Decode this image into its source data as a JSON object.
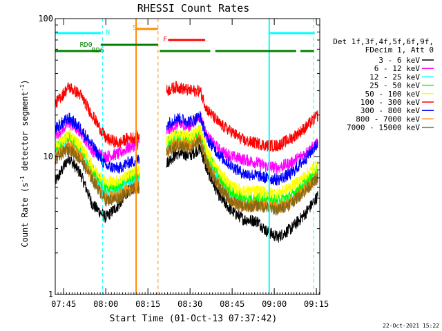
{
  "chart_data": {
    "type": "line",
    "title": "RHESSI Count Rates",
    "xlabel": "Start Time (01-Oct-13 07:37:42)",
    "ylabel": "Count Rate (s⁻¹ detector segment⁻¹)",
    "ylabel_parts": {
      "a": "Count Rate (s",
      "b": "-1",
      "c": " detector segment",
      "d": "-1",
      "e": ")"
    },
    "yscale": "log",
    "ylim": [
      1,
      100
    ],
    "xlim_minutes": [
      7.7,
      9.27
    ],
    "x_ticks": [
      {
        "label": "07:45",
        "value": 7.75
      },
      {
        "label": "08:00",
        "value": 8.0
      },
      {
        "label": "08:15",
        "value": 8.25
      },
      {
        "label": "08:30",
        "value": 8.5
      },
      {
        "label": "08:45",
        "value": 8.75
      },
      {
        "label": "09:00",
        "value": 9.0
      },
      {
        "label": "09:15",
        "value": 9.25
      }
    ],
    "y_ticks": [
      {
        "label": "1",
        "value": 1
      },
      {
        "label": "10",
        "value": 10
      },
      {
        "label": "100",
        "value": 100
      }
    ],
    "legend_header": [
      "Det 1f,3f,4f,5f,6f,9f,",
      "FDecim 1, Att 0"
    ],
    "legend_placement": "right",
    "series": [
      {
        "name": "3 - 6 keV",
        "color": "#000000",
        "points": [
          [
            7.7,
            6.5
          ],
          [
            7.78,
            9.8
          ],
          [
            7.85,
            7.5
          ],
          [
            7.92,
            4.5
          ],
          [
            8.0,
            3.6
          ],
          [
            8.08,
            4.5
          ],
          [
            8.13,
            5.6
          ],
          [
            8.2,
            6.3
          ],
          [
            8.26,
            null
          ],
          [
            8.35,
            null
          ],
          [
            8.36,
            9.0
          ],
          [
            8.42,
            10.5
          ],
          [
            8.5,
            10.2
          ],
          [
            8.56,
            11.5
          ],
          [
            8.6,
            8.0
          ],
          [
            8.68,
            5.0
          ],
          [
            8.75,
            4.0
          ],
          [
            8.82,
            3.5
          ],
          [
            8.9,
            3.4
          ],
          [
            8.95,
            2.9
          ],
          [
            9.02,
            2.6
          ],
          [
            9.1,
            3.0
          ],
          [
            9.18,
            3.8
          ],
          [
            9.26,
            5.2
          ]
        ]
      },
      {
        "name": "6 - 12 keV",
        "color": "#ff00ff",
        "points": [
          [
            7.7,
            14
          ],
          [
            7.78,
            17.5
          ],
          [
            7.85,
            15
          ],
          [
            7.92,
            11
          ],
          [
            8.0,
            10.0
          ],
          [
            8.08,
            10.5
          ],
          [
            8.13,
            11.5
          ],
          [
            8.2,
            12.5
          ],
          [
            8.26,
            null
          ],
          [
            8.35,
            null
          ],
          [
            8.36,
            15
          ],
          [
            8.42,
            17
          ],
          [
            8.5,
            16.5
          ],
          [
            8.56,
            20
          ],
          [
            8.6,
            14
          ],
          [
            8.68,
            11
          ],
          [
            8.75,
            10
          ],
          [
            8.82,
            9.5
          ],
          [
            8.9,
            9.0
          ],
          [
            8.95,
            8.5
          ],
          [
            9.02,
            8.3
          ],
          [
            9.1,
            9.0
          ],
          [
            9.18,
            10.5
          ],
          [
            9.26,
            12.5
          ]
        ]
      },
      {
        "name": "12 - 25 keV",
        "color": "#00ffff",
        "points": [
          [
            7.7,
            11
          ],
          [
            7.78,
            13.5
          ],
          [
            7.85,
            11
          ],
          [
            7.92,
            7.5
          ],
          [
            8.0,
            5.5
          ],
          [
            8.08,
            5.8
          ],
          [
            8.13,
            6.5
          ],
          [
            8.2,
            7.0
          ],
          [
            8.26,
            null
          ],
          [
            8.35,
            null
          ],
          [
            8.36,
            12
          ],
          [
            8.42,
            13.5
          ],
          [
            8.5,
            13
          ],
          [
            8.56,
            15
          ],
          [
            8.6,
            10
          ],
          [
            8.68,
            6.5
          ],
          [
            8.75,
            5.0
          ],
          [
            8.82,
            4.5
          ],
          [
            8.9,
            4.6
          ],
          [
            8.95,
            4.5
          ],
          [
            9.02,
            4.2
          ],
          [
            9.1,
            4.8
          ],
          [
            9.18,
            6.0
          ],
          [
            9.26,
            7.5
          ]
        ]
      },
      {
        "name": "25 - 50 keV",
        "color": "#00ff00",
        "points": [
          [
            7.7,
            11.5
          ],
          [
            7.78,
            14
          ],
          [
            7.85,
            11.5
          ],
          [
            7.92,
            8.0
          ],
          [
            8.0,
            6.0
          ],
          [
            8.08,
            6.2
          ],
          [
            8.13,
            7.0
          ],
          [
            8.2,
            7.5
          ],
          [
            8.26,
            null
          ],
          [
            8.35,
            null
          ],
          [
            8.36,
            12.5
          ],
          [
            8.42,
            14
          ],
          [
            8.5,
            13.5
          ],
          [
            8.56,
            15.5
          ],
          [
            8.6,
            10.5
          ],
          [
            8.68,
            7.0
          ],
          [
            8.75,
            5.5
          ],
          [
            8.82,
            5.0
          ],
          [
            8.9,
            5.0
          ],
          [
            8.95,
            5.0
          ],
          [
            9.02,
            4.8
          ],
          [
            9.1,
            5.2
          ],
          [
            9.18,
            6.5
          ],
          [
            9.26,
            8.0
          ]
        ]
      },
      {
        "name": "50 - 100 keV",
        "color": "#ffff00",
        "points": [
          [
            7.7,
            12
          ],
          [
            7.78,
            14.5
          ],
          [
            7.85,
            12
          ],
          [
            7.92,
            8.5
          ],
          [
            8.0,
            6.5
          ],
          [
            8.08,
            6.7
          ],
          [
            8.13,
            7.4
          ],
          [
            8.2,
            8.0
          ],
          [
            8.26,
            null
          ],
          [
            8.35,
            null
          ],
          [
            8.36,
            13
          ],
          [
            8.42,
            14.5
          ],
          [
            8.5,
            14
          ],
          [
            8.56,
            16
          ],
          [
            8.6,
            11
          ],
          [
            8.68,
            7.5
          ],
          [
            8.75,
            6.0
          ],
          [
            8.82,
            5.6
          ],
          [
            8.9,
            5.6
          ],
          [
            8.95,
            5.5
          ],
          [
            9.02,
            5.4
          ],
          [
            9.1,
            6.0
          ],
          [
            9.18,
            7.2
          ],
          [
            9.26,
            8.8
          ]
        ]
      },
      {
        "name": "100 - 300 keV",
        "color": "#ff0000",
        "points": [
          [
            7.7,
            24
          ],
          [
            7.78,
            32
          ],
          [
            7.85,
            28
          ],
          [
            7.92,
            20
          ],
          [
            8.0,
            13.5
          ],
          [
            8.08,
            12.5
          ],
          [
            8.13,
            13.5
          ],
          [
            8.2,
            14.0
          ],
          [
            8.26,
            null
          ],
          [
            8.35,
            null
          ],
          [
            8.36,
            30
          ],
          [
            8.42,
            32
          ],
          [
            8.5,
            30
          ],
          [
            8.56,
            30
          ],
          [
            8.6,
            22
          ],
          [
            8.68,
            17
          ],
          [
            8.75,
            15
          ],
          [
            8.82,
            13
          ],
          [
            8.9,
            12.5
          ],
          [
            8.95,
            12
          ],
          [
            9.02,
            12
          ],
          [
            9.1,
            13.5
          ],
          [
            9.18,
            16
          ],
          [
            9.26,
            20
          ]
        ]
      },
      {
        "name": "300 - 800 keV",
        "color": "#0000ff",
        "points": [
          [
            7.7,
            16
          ],
          [
            7.78,
            19
          ],
          [
            7.85,
            16
          ],
          [
            7.92,
            12
          ],
          [
            8.0,
            8.5
          ],
          [
            8.08,
            8.2
          ],
          [
            8.13,
            9.0
          ],
          [
            8.2,
            9.5
          ],
          [
            8.26,
            null
          ],
          [
            8.35,
            null
          ],
          [
            8.36,
            17
          ],
          [
            8.42,
            19
          ],
          [
            8.5,
            18
          ],
          [
            8.56,
            19.5
          ],
          [
            8.6,
            13.5
          ],
          [
            8.68,
            10
          ],
          [
            8.75,
            8.5
          ],
          [
            8.82,
            7.5
          ],
          [
            8.9,
            7.3
          ],
          [
            8.95,
            7.0
          ],
          [
            9.02,
            6.8
          ],
          [
            9.1,
            7.5
          ],
          [
            9.18,
            9.5
          ],
          [
            9.26,
            12.5
          ]
        ]
      },
      {
        "name": "800 - 7000 keV",
        "color": "#ff8c00",
        "points": [
          [
            7.7,
            10
          ],
          [
            7.78,
            12
          ],
          [
            7.85,
            10
          ],
          [
            7.92,
            7.0
          ],
          [
            8.0,
            5.0
          ],
          [
            8.08,
            5.2
          ],
          [
            8.13,
            5.8
          ],
          [
            8.2,
            6.3
          ],
          [
            8.26,
            null
          ],
          [
            8.35,
            null
          ],
          [
            8.36,
            11
          ],
          [
            8.42,
            12.5
          ],
          [
            8.5,
            12
          ],
          [
            8.56,
            13.5
          ],
          [
            8.6,
            9.0
          ],
          [
            8.68,
            6.0
          ],
          [
            8.75,
            4.8
          ],
          [
            8.82,
            4.4
          ],
          [
            8.9,
            4.5
          ],
          [
            8.95,
            4.4
          ],
          [
            9.02,
            4.2
          ],
          [
            9.1,
            4.7
          ],
          [
            9.18,
            5.8
          ],
          [
            9.26,
            7.2
          ]
        ]
      },
      {
        "name": "7000 - 15000 keV",
        "color": "#8b6914",
        "points": [
          [
            7.7,
            9.5
          ],
          [
            7.78,
            11.5
          ],
          [
            7.85,
            9.5
          ],
          [
            7.92,
            6.8
          ],
          [
            8.0,
            4.8
          ],
          [
            8.08,
            5.0
          ],
          [
            8.13,
            5.6
          ],
          [
            8.2,
            6.0
          ],
          [
            8.26,
            null
          ],
          [
            8.35,
            null
          ],
          [
            8.36,
            10.5
          ],
          [
            8.42,
            12
          ],
          [
            8.5,
            11.5
          ],
          [
            8.56,
            13
          ],
          [
            8.6,
            8.8
          ],
          [
            8.68,
            5.8
          ],
          [
            8.75,
            4.7
          ],
          [
            8.82,
            4.3
          ],
          [
            8.9,
            4.4
          ],
          [
            8.95,
            4.3
          ],
          [
            9.02,
            4.1
          ],
          [
            9.1,
            4.6
          ],
          [
            9.18,
            5.6
          ],
          [
            9.26,
            7.0
          ]
        ]
      }
    ],
    "vertical_lines": [
      {
        "x": 7.98,
        "color": "#00ffff",
        "style": "dashed"
      },
      {
        "x": 8.18,
        "color": "#ff8c00",
        "style": "solid"
      },
      {
        "x": 8.31,
        "color": "#ff8c00",
        "style": "dashed"
      },
      {
        "x": 8.97,
        "color": "#00ffff",
        "style": "solid"
      },
      {
        "x": 9.235,
        "color": "#00ffff",
        "style": "dashed"
      }
    ],
    "flag_bars": [
      {
        "label": "N",
        "color": "#00ffff",
        "y": 1,
        "segments": [
          [
            7.7,
            7.97
          ],
          [
            8.97,
            9.24
          ]
        ],
        "label_x": 8.0
      },
      {
        "label": "S",
        "color": "#ff8c00",
        "y": 2,
        "segments": [
          [
            8.18,
            8.31
          ]
        ],
        "label_x": 8.16
      },
      {
        "label": "F",
        "color": "#ff0000",
        "y": 3,
        "segments": [
          [
            8.37,
            8.59
          ]
        ],
        "label_x": 8.34
      },
      {
        "label": "RD0",
        "color": "#008000",
        "y": 4,
        "segments": [
          [
            7.97,
            8.31
          ]
        ],
        "label_x": 7.92
      },
      {
        "label": "RD6",
        "color": "#008000",
        "y": 5,
        "segments": [
          [
            7.7,
            7.97
          ],
          [
            8.32,
            8.62
          ],
          [
            8.65,
            9.13
          ],
          [
            9.155,
            9.235
          ]
        ],
        "label_x": 7.99
      }
    ],
    "footer_date": "22-Oct-2021 15:22"
  }
}
